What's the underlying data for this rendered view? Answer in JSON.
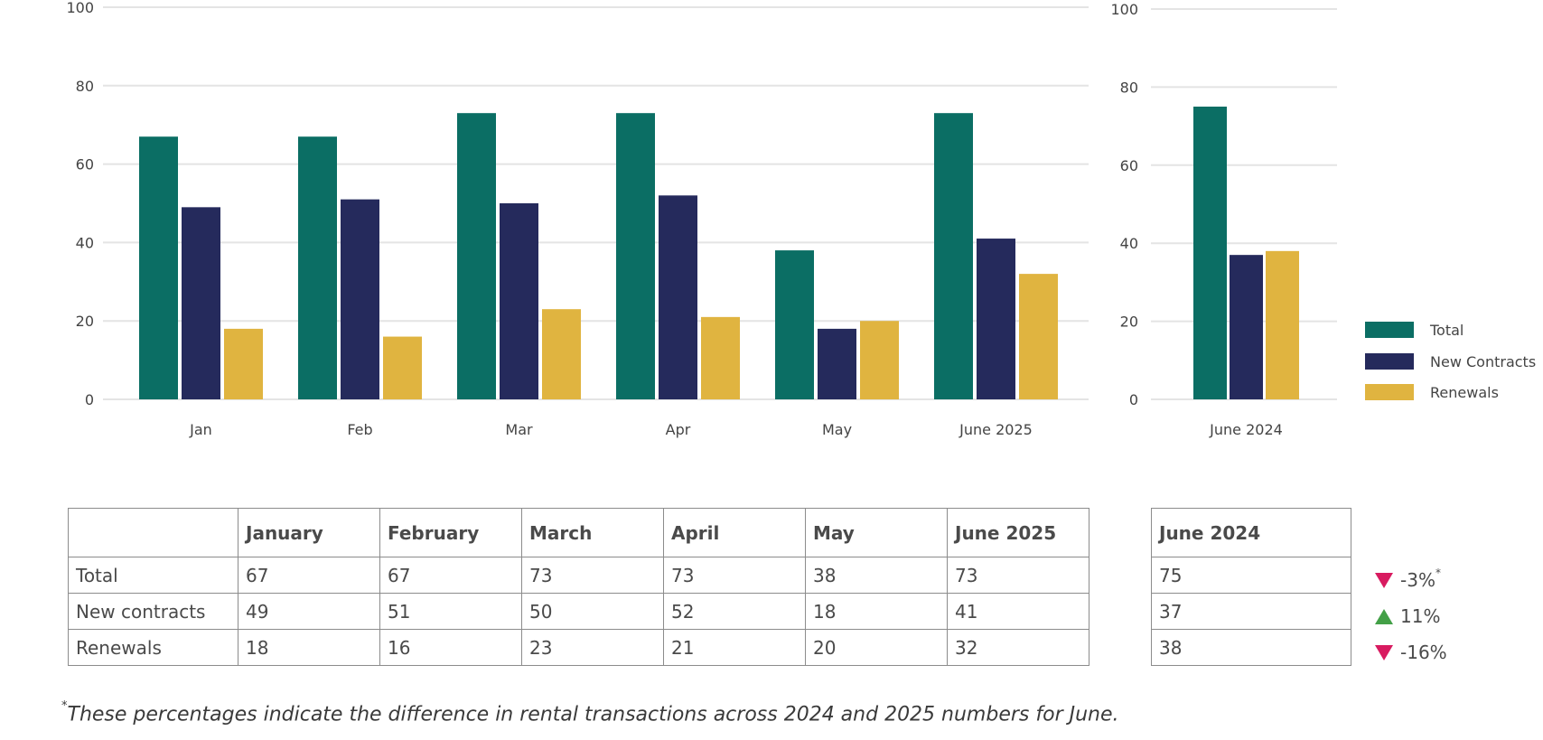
{
  "chart_data": [
    {
      "type": "bar",
      "categories": [
        "Jan",
        "Feb",
        "Mar",
        "Apr",
        "May",
        "June 2025"
      ],
      "series": [
        {
          "name": "Total",
          "values": [
            67,
            67,
            73,
            73,
            38,
            73
          ]
        },
        {
          "name": "New Contracts",
          "values": [
            49,
            51,
            50,
            52,
            18,
            41
          ]
        },
        {
          "name": "Renewals",
          "values": [
            18,
            16,
            23,
            21,
            20,
            32
          ]
        }
      ],
      "ylim": [
        0,
        100
      ],
      "yticks": [
        "0",
        "20",
        "40",
        "60",
        "80",
        "100"
      ],
      "grid": true
    },
    {
      "type": "bar",
      "categories": [
        "June 2024"
      ],
      "series": [
        {
          "name": "Total",
          "values": [
            75
          ]
        },
        {
          "name": "New Contracts",
          "values": [
            37
          ]
        },
        {
          "name": "Renewals",
          "values": [
            38
          ]
        }
      ],
      "ylim": [
        0,
        100
      ],
      "yticks": [
        "0",
        "20",
        "40",
        "60",
        "80",
        "100"
      ],
      "grid": true
    }
  ],
  "legend": {
    "placement": "right",
    "items": [
      {
        "label": "Total",
        "color": "#0b6e64"
      },
      {
        "label": "New Contracts",
        "color": "#252a5c"
      },
      {
        "label": "Renewals",
        "color": "#e0b440"
      }
    ]
  },
  "colors": {
    "total": "#0b6e64",
    "new": "#252a5c",
    "renewals": "#e0b440",
    "grid": "#e4e4e4",
    "down": "#d81b60",
    "up": "#43a047"
  },
  "table": {
    "headers": [
      "",
      "January",
      "February",
      "March",
      "April",
      "May",
      "June 2025"
    ],
    "rows": [
      [
        "Total",
        "67",
        "67",
        "73",
        "73",
        "38",
        "73"
      ],
      [
        "New contracts",
        "49",
        "51",
        "50",
        "52",
        "18",
        "41"
      ],
      [
        "Renewals",
        "18",
        "16",
        "23",
        "21",
        "20",
        "32"
      ]
    ]
  },
  "side_table": {
    "header": "June 2024",
    "rows": [
      "75",
      "37",
      "38"
    ]
  },
  "differences": [
    {
      "direction": "down",
      "value": "-3%",
      "marker": "*"
    },
    {
      "direction": "up",
      "value": "11%",
      "marker": ""
    },
    {
      "direction": "down",
      "value": "-16%",
      "marker": ""
    }
  ],
  "footnote": {
    "marker": "*",
    "text": "These percentages indicate the difference in rental transactions across 2024 and 2025 numbers for June."
  }
}
